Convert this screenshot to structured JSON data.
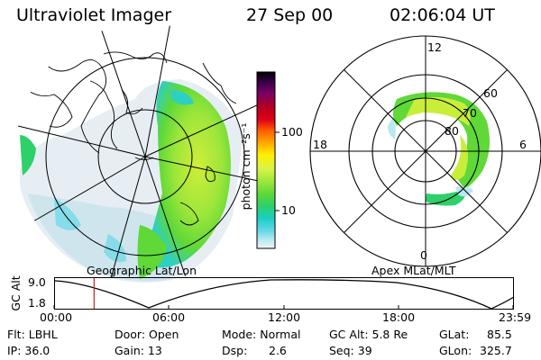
{
  "header": {
    "instrument": "Ultraviolet Imager",
    "date": "27 Sep 00",
    "time": "02:06:04 UT"
  },
  "geo_panel": {
    "label": "Geographic Lat/Lon"
  },
  "mag_panel": {
    "label": "Apex MLat/MLT",
    "mlt_labels": {
      "top": "12",
      "left": "18",
      "right": "6",
      "bottom": "0"
    },
    "lat_labels": [
      "60",
      "70",
      "80"
    ]
  },
  "colorbar": {
    "unit_label": "photon cm⁻²s⁻¹",
    "tick_labels": [
      "100",
      "10"
    ],
    "colors": [
      "#000000",
      "#3a004a",
      "#7a0066",
      "#b3001e",
      "#e0001a",
      "#ff5a00",
      "#ffa600",
      "#fff000",
      "#d8f24a",
      "#9ee63a",
      "#5fd838",
      "#2ed06a",
      "#18cfc4",
      "#66d8e6",
      "#b8e8f0",
      "#eef4f8"
    ]
  },
  "altitude_plot": {
    "ylabel": "GC Alt",
    "yticks": [
      "9.0",
      "1.8"
    ],
    "xticks": [
      "00:00",
      "06:00",
      "12:00",
      "18:00",
      "23:59"
    ],
    "current_time_fraction": 0.087
  },
  "info": {
    "row1": {
      "filter": "Flt: LBHL",
      "door": "Door: Open",
      "mode": "Mode: Normal",
      "gc_alt": "GC Alt: 5.8 Re",
      "glat_label": "GLat:",
      "glat_value": "85.5"
    },
    "row2": {
      "ip": "IP: 36.0",
      "gain": "Gain: 13",
      "dsp_label": "Dsp:",
      "dsp_value": "2.6",
      "seq": "Seq: 39",
      "glon_label": "GLon:",
      "glon_value": "325.7"
    }
  },
  "colors": {
    "aurora_green": "#5fd838",
    "aurora_yellow": "#c8ee3a",
    "aurora_cyan": "#2ed0c0",
    "time_marker": "#cc2222"
  }
}
